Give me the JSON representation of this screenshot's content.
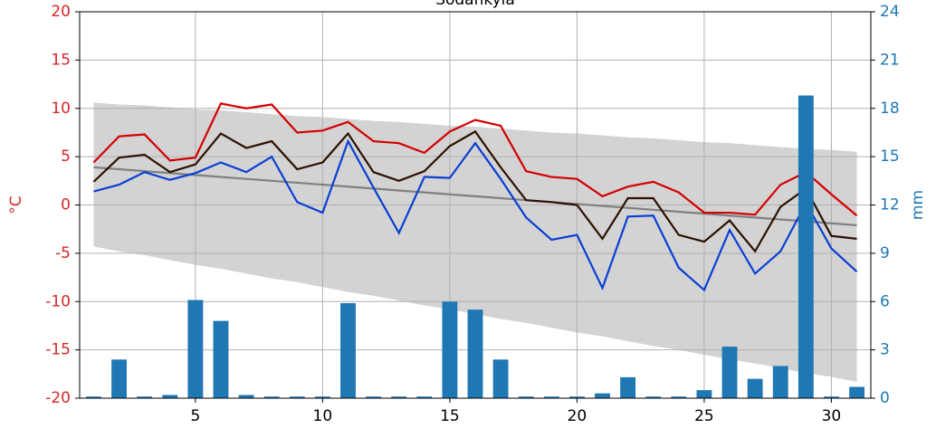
{
  "chart_data": {
    "type": "line",
    "title": "Sodankylä",
    "ylabel": "°C",
    "y2label": "mm",
    "x": [
      1,
      2,
      3,
      4,
      5,
      6,
      7,
      8,
      9,
      10,
      11,
      12,
      13,
      14,
      15,
      16,
      17,
      18,
      19,
      20,
      21,
      22,
      23,
      24,
      25,
      26,
      27,
      28,
      29,
      30,
      31
    ],
    "xlim": [
      0.45,
      31.55
    ],
    "xticks": [
      5,
      10,
      15,
      20,
      25,
      30
    ],
    "ylim": [
      -20,
      20
    ],
    "yticks": [
      -20,
      -15,
      -10,
      -5,
      0,
      5,
      10,
      15,
      20
    ],
    "ycolor": "#d62728",
    "y2lim": [
      0,
      24
    ],
    "y2ticks": [
      0,
      3,
      6,
      9,
      12,
      15,
      18,
      21,
      24
    ],
    "y2color": "#1f77b4",
    "grid": true,
    "band": {
      "color": "#d3d3d3",
      "upper": [
        10.6,
        10.4,
        10.3,
        10.1,
        9.9,
        9.8,
        9.6,
        9.4,
        9.2,
        9.1,
        8.9,
        8.7,
        8.6,
        8.4,
        8.2,
        8.1,
        7.9,
        7.7,
        7.5,
        7.4,
        7.2,
        7.0,
        6.9,
        6.7,
        6.5,
        6.4,
        6.2,
        6.0,
        5.8,
        5.7,
        5.5
      ],
      "lower": [
        -4.3,
        -4.8,
        -5.2,
        -5.7,
        -6.2,
        -6.6,
        -7.1,
        -7.6,
        -8.0,
        -8.5,
        -9.0,
        -9.4,
        -9.9,
        -10.4,
        -10.8,
        -11.3,
        -11.8,
        -12.2,
        -12.7,
        -13.2,
        -13.6,
        -14.1,
        -14.6,
        -15.0,
        -15.5,
        -16.0,
        -16.4,
        -16.9,
        -17.4,
        -17.8,
        -18.3
      ]
    },
    "series": [
      {
        "color": "#808080",
        "values": [
          3.9,
          3.7,
          3.5,
          3.3,
          3.1,
          2.9,
          2.7,
          2.5,
          2.3,
          2.1,
          1.9,
          1.7,
          1.5,
          1.3,
          1.1,
          0.9,
          0.7,
          0.5,
          0.3,
          0.1,
          -0.1,
          -0.3,
          -0.5,
          -0.7,
          -0.9,
          -1.1,
          -1.3,
          -1.5,
          -1.7,
          -1.9,
          -2.1
        ]
      },
      {
        "color": "#d40000",
        "values": [
          4.4,
          7.1,
          7.3,
          4.6,
          4.9,
          10.5,
          10.0,
          10.4,
          7.5,
          7.7,
          8.6,
          6.6,
          6.4,
          5.4,
          7.6,
          8.8,
          8.2,
          3.5,
          2.9,
          2.7,
          0.9,
          1.9,
          2.4,
          1.3,
          -0.8,
          -0.8,
          -1.0,
          2.1,
          3.4,
          1.1,
          -1.1
        ]
      },
      {
        "color": "#2b1100",
        "values": [
          2.4,
          4.9,
          5.2,
          3.4,
          4.2,
          7.4,
          5.9,
          6.6,
          3.7,
          4.4,
          7.4,
          3.4,
          2.5,
          3.5,
          6.1,
          7.6,
          3.9,
          0.5,
          0.3,
          0.0,
          -3.5,
          0.7,
          0.7,
          -3.1,
          -3.8,
          -1.6,
          -4.8,
          -0.2,
          1.7,
          -3.2,
          -3.5
        ]
      },
      {
        "color": "#0a3fd4",
        "values": [
          1.4,
          2.1,
          3.4,
          2.6,
          3.3,
          4.4,
          3.4,
          5.0,
          0.3,
          -0.8,
          6.6,
          1.8,
          -2.9,
          2.9,
          2.8,
          6.4,
          2.7,
          -1.3,
          -3.6,
          -3.1,
          -8.6,
          -1.2,
          -1.1,
          -6.5,
          -8.8,
          -2.6,
          -7.1,
          -4.8,
          0.2,
          -4.5,
          -6.9
        ]
      }
    ],
    "bars": {
      "color": "#1f77b4",
      "axis": "y2",
      "values": [
        0.1,
        2.4,
        0.1,
        0.2,
        6.1,
        4.8,
        0.2,
        0.1,
        0.1,
        0.1,
        5.9,
        0.1,
        0.1,
        0.1,
        6.0,
        5.5,
        2.4,
        0.1,
        0.1,
        0.1,
        0.3,
        1.3,
        0.1,
        0.1,
        0.5,
        3.2,
        1.2,
        2.0,
        18.8,
        0.1,
        0.7
      ]
    }
  }
}
